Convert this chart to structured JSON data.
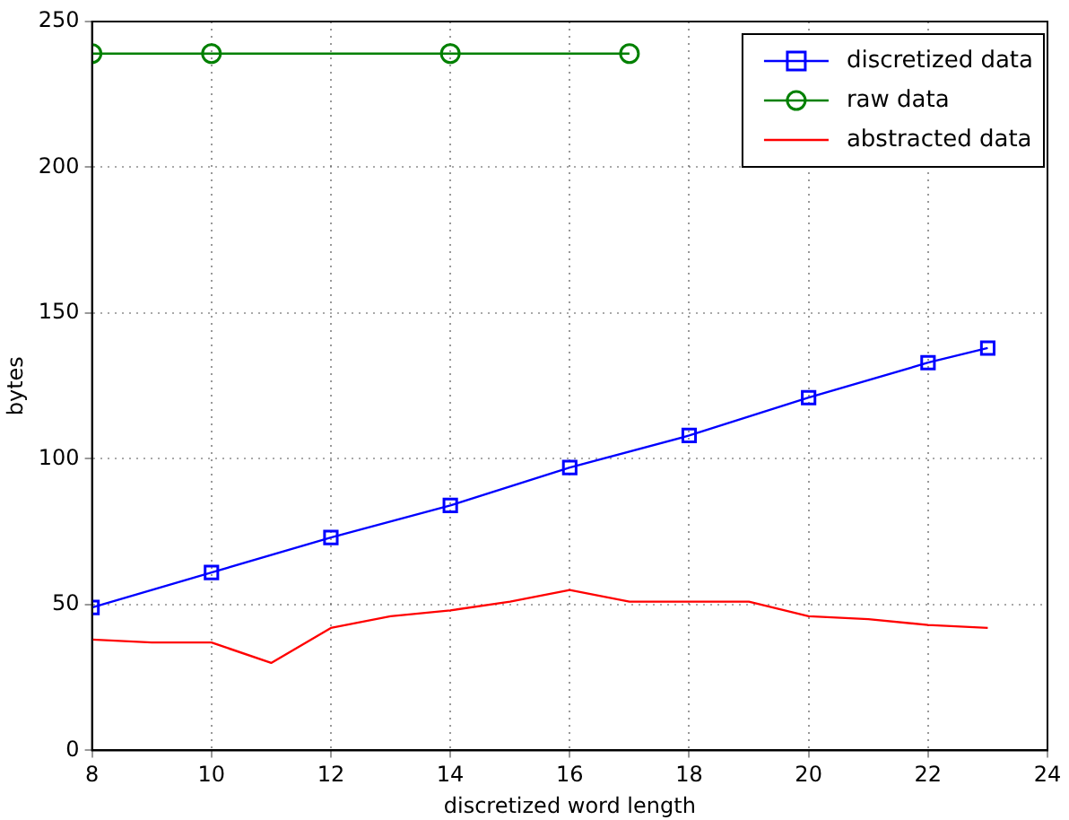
{
  "chart_data": {
    "type": "line",
    "xlabel": "discretized word length",
    "ylabel": "bytes",
    "xlim": [
      8,
      24
    ],
    "xticks": [
      8,
      10,
      12,
      14,
      16,
      18,
      20,
      22,
      24
    ],
    "ylim": [
      0,
      250
    ],
    "yticks": [
      0,
      50,
      100,
      150,
      200,
      250
    ],
    "grid": true,
    "legend": "top right",
    "line_style": "solid",
    "series": [
      {
        "name": "discretized data",
        "color": "#0000ff",
        "marker": "square",
        "x": [
          8,
          10,
          12,
          14,
          16,
          18,
          20,
          22,
          23
        ],
        "values": [
          49,
          61,
          73,
          84,
          97,
          108,
          121,
          133,
          138
        ]
      },
      {
        "name": "raw data",
        "color": "#008000",
        "marker": "circle",
        "x": [
          8,
          10,
          14,
          17
        ],
        "values": [
          239,
          239,
          239,
          239
        ]
      },
      {
        "name": "abstracted data",
        "color": "#ff0000",
        "marker": "none",
        "x": [
          8,
          9,
          10,
          11,
          12,
          13,
          14,
          15,
          16,
          17,
          18,
          19,
          20,
          21,
          22,
          23
        ],
        "values": [
          38,
          37,
          37,
          30,
          42,
          46,
          48,
          51,
          55,
          51,
          51,
          51,
          46,
          45,
          43,
          42
        ]
      }
    ]
  }
}
